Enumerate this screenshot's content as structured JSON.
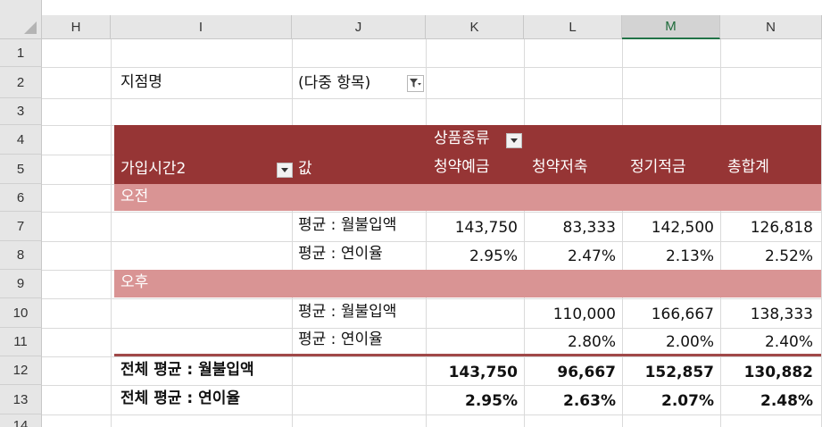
{
  "columns": [
    {
      "id": "corner",
      "label": ""
    },
    {
      "id": "H",
      "label": "H"
    },
    {
      "id": "I",
      "label": "I"
    },
    {
      "id": "J",
      "label": "J"
    },
    {
      "id": "K",
      "label": "K"
    },
    {
      "id": "L",
      "label": "L"
    },
    {
      "id": "M",
      "label": "M",
      "selected": true
    },
    {
      "id": "N",
      "label": "N"
    }
  ],
  "rows": [
    "1",
    "2",
    "3",
    "4",
    "5",
    "6",
    "7",
    "8",
    "9",
    "10",
    "11",
    "12",
    "13",
    "14"
  ],
  "filter": {
    "label": "지점명",
    "value": "(다중 항목)",
    "icon": "filter-funnel-icon"
  },
  "pivot": {
    "column_field": "상품종류",
    "row_field": "가입시간2",
    "values_label": "값",
    "column_headers": [
      "청약예금",
      "청약저축",
      "정기적금",
      "총합계"
    ],
    "groups": [
      {
        "name": "오전",
        "rows": [
          {
            "label": "평균 : 월불입액",
            "values": [
              "143,750",
              "83,333",
              "142,500",
              "126,818"
            ]
          },
          {
            "label": "평균 : 연이율",
            "values": [
              "2.95%",
              "2.47%",
              "2.13%",
              "2.52%"
            ]
          }
        ]
      },
      {
        "name": "오후",
        "rows": [
          {
            "label": "평균 : 월불입액",
            "values": [
              "",
              "110,000",
              "166,667",
              "138,333"
            ]
          },
          {
            "label": "평균 : 연이율",
            "values": [
              "",
              "2.80%",
              "2.00%",
              "2.40%"
            ]
          }
        ]
      }
    ],
    "totals": [
      {
        "label": "전체 평균 : 월불입액",
        "values": [
          "143,750",
          "96,667",
          "152,857",
          "130,882"
        ]
      },
      {
        "label": "전체 평균 : 연이율",
        "values": [
          "2.95%",
          "2.63%",
          "2.07%",
          "2.48%"
        ]
      }
    ]
  },
  "colors": {
    "header_band": "#963535",
    "group_band": "#d99494",
    "total_separator": "#a04848",
    "selected_column_accent": "#217346"
  }
}
